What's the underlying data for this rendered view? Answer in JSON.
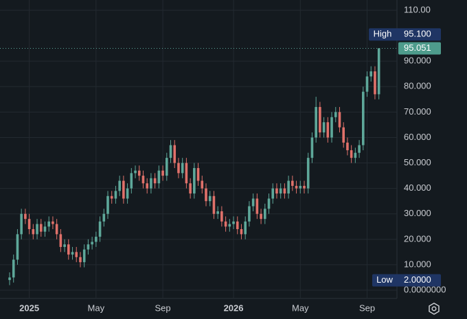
{
  "chart_data": {
    "type": "candlestick",
    "categories": [
      null,
      null,
      null,
      null,
      null,
      "2025",
      null,
      null,
      null,
      null,
      null,
      null,
      null,
      null,
      null,
      null,
      null,
      null,
      null,
      null,
      null,
      null,
      "May",
      null,
      null,
      null,
      null,
      null,
      null,
      null,
      null,
      null,
      null,
      null,
      null,
      null,
      null,
      null,
      null,
      "Sep",
      null,
      null,
      null,
      null,
      null,
      null,
      null,
      null,
      null,
      null,
      null,
      null,
      null,
      null,
      null,
      null,
      null,
      "2026",
      null,
      null,
      null,
      null,
      null,
      null,
      null,
      null,
      null,
      null,
      null,
      null,
      null,
      null,
      null,
      null,
      "May",
      null,
      null,
      null,
      null,
      null,
      null,
      null,
      null,
      null,
      null,
      null,
      null,
      null,
      null,
      null,
      null,
      "Sep",
      null,
      null,
      null
    ],
    "open": [
      4,
      5,
      12,
      22,
      30,
      28,
      24,
      22,
      26,
      23,
      25,
      27,
      26,
      22,
      17,
      18,
      14,
      15,
      13,
      11,
      16,
      18,
      19,
      21,
      27,
      30,
      37,
      36,
      39,
      43,
      36,
      40,
      46,
      47,
      45,
      42,
      40,
      44,
      42,
      47,
      45,
      52,
      57,
      50,
      46,
      50,
      42,
      38,
      48,
      43,
      40,
      35,
      37,
      30,
      31,
      27,
      25,
      26,
      27,
      24,
      22,
      27,
      33,
      36,
      30,
      28,
      32,
      36,
      40,
      38,
      40,
      38,
      43,
      41,
      40,
      41,
      40,
      52,
      60,
      72,
      62,
      66,
      60,
      68,
      70,
      64,
      58,
      55,
      52,
      54,
      57,
      78,
      84,
      86,
      77
    ],
    "high": [
      7,
      14,
      24,
      32,
      32,
      30,
      26,
      28,
      28,
      27,
      29,
      29,
      28,
      24,
      20,
      20,
      17,
      17,
      15,
      18,
      20,
      21,
      23,
      29,
      32,
      39,
      39,
      41,
      45,
      45,
      42,
      48,
      49,
      49,
      47,
      44,
      46,
      46,
      49,
      49,
      54,
      59,
      59,
      52,
      52,
      52,
      44,
      50,
      50,
      45,
      42,
      39,
      39,
      33,
      33,
      29,
      28,
      29,
      29,
      26,
      29,
      35,
      38,
      38,
      32,
      34,
      38,
      42,
      42,
      42,
      42,
      45,
      45,
      43,
      43,
      43,
      54,
      62,
      76,
      74,
      68,
      68,
      70,
      72,
      72,
      66,
      60,
      57,
      56,
      59,
      80,
      86,
      88,
      88,
      95.1
    ],
    "low": [
      2,
      3,
      10,
      20,
      26,
      22,
      20,
      20,
      21,
      21,
      23,
      24,
      20,
      15,
      15,
      12,
      12,
      11,
      9,
      9,
      14,
      16,
      17,
      19,
      25,
      28,
      34,
      34,
      37,
      34,
      34,
      38,
      44,
      43,
      40,
      38,
      38,
      40,
      40,
      43,
      43,
      50,
      48,
      44,
      44,
      40,
      36,
      36,
      41,
      38,
      33,
      33,
      28,
      28,
      25,
      23,
      23,
      24,
      22,
      20,
      20,
      25,
      31,
      28,
      26,
      26,
      30,
      34,
      36,
      36,
      36,
      36,
      39,
      38,
      38,
      38,
      38,
      50,
      58,
      60,
      60,
      58,
      58,
      66,
      62,
      56,
      53,
      50,
      50,
      52,
      55,
      76,
      82,
      75,
      75
    ],
    "close": [
      5,
      12,
      22,
      30,
      28,
      24,
      22,
      26,
      23,
      25,
      27,
      26,
      22,
      17,
      18,
      14,
      15,
      13,
      11,
      16,
      18,
      19,
      21,
      27,
      30,
      37,
      36,
      39,
      43,
      36,
      40,
      46,
      47,
      45,
      42,
      40,
      44,
      42,
      47,
      45,
      52,
      57,
      50,
      46,
      50,
      42,
      38,
      48,
      43,
      40,
      35,
      37,
      30,
      31,
      27,
      25,
      26,
      27,
      24,
      22,
      27,
      33,
      36,
      30,
      28,
      32,
      36,
      40,
      38,
      40,
      38,
      43,
      41,
      40,
      41,
      40,
      52,
      60,
      72,
      62,
      66,
      60,
      68,
      70,
      64,
      58,
      55,
      52,
      54,
      57,
      78,
      84,
      86,
      77,
      95.051
    ],
    "up_color": "#5ea89a",
    "down_color": "#e0716a",
    "ylim": [
      0,
      110
    ],
    "yticks": [
      {
        "value": 0,
        "label": "0.0000000"
      },
      {
        "value": 10,
        "label": "10.000"
      },
      {
        "value": 20,
        "label": "20.000"
      },
      {
        "value": 30,
        "label": "30.000"
      },
      {
        "value": 40,
        "label": "40.000"
      },
      {
        "value": 50,
        "label": "50.000"
      },
      {
        "value": 60,
        "label": "60.000"
      },
      {
        "value": 70,
        "label": "70.000"
      },
      {
        "value": 80,
        "label": "80.000"
      },
      {
        "value": 90,
        "label": "90.000"
      },
      {
        "value": 110,
        "label": "110.00"
      }
    ],
    "grid": true,
    "high_marker": {
      "label": "High",
      "value": 95.1,
      "value_label": "95.100"
    },
    "low_marker": {
      "label": "Low",
      "value": 2,
      "value_label": "2.0000"
    },
    "last_price": 95.051
  }
}
